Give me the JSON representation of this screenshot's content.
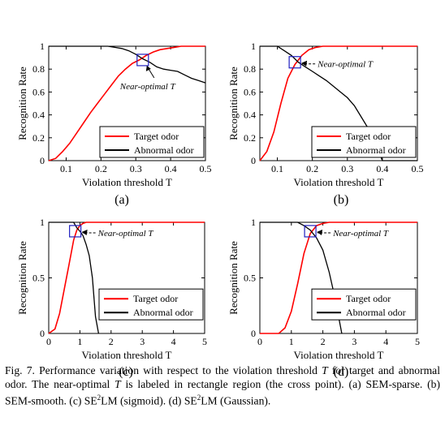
{
  "figure": {
    "caption_segments": [
      {
        "t": "Fig. 7.   Performance variation with respect to the violation threshold "
      },
      {
        "t": "T",
        "i": true
      },
      {
        "t": " for target and abnormal odor. The near-optimal "
      },
      {
        "t": "T",
        "i": true
      },
      {
        "t": " is labeled in rectangle region (the cross point). (a) SEM-sparse. (b) SEM-smooth. (c) SE"
      },
      {
        "t": "2",
        "sup": true
      },
      {
        "t": "LM (sigmoid). (d) SE"
      },
      {
        "t": "2",
        "sup": true
      },
      {
        "t": "LM (Gaussian)."
      }
    ]
  },
  "colors": {
    "target": "#ff0000",
    "abnormal": "#000000",
    "marker": "#2020c0"
  },
  "chart_data": [
    {
      "id": "a",
      "type": "line",
      "panel_label": "(a)",
      "xlabel": "Violation threshold T",
      "ylabel": "Recognition Rate",
      "xlim": [
        0.05,
        0.5
      ],
      "ylim": [
        0,
        1
      ],
      "xticks": [
        0.1,
        0.2,
        0.3,
        0.4,
        0.5
      ],
      "xtick_labels": [
        "0.1",
        "0.2",
        "0.3",
        "0.4",
        "0.5"
      ],
      "yticks": [
        0,
        0.2,
        0.4,
        0.6,
        0.8,
        1
      ],
      "ytick_labels": [
        "0",
        "0.2",
        "0.4",
        "0.6",
        "0.8",
        "1"
      ],
      "legend": {
        "position": "lower-right",
        "entries": [
          "Target odor",
          "Abnormal odor"
        ]
      },
      "annotation": {
        "text": "Near-optimal T",
        "x": 0.32,
        "y": 0.88
      },
      "series": [
        {
          "name": "Target odor",
          "x": [
            0.05,
            0.07,
            0.09,
            0.11,
            0.13,
            0.15,
            0.17,
            0.19,
            0.21,
            0.23,
            0.25,
            0.27,
            0.29,
            0.31,
            0.33,
            0.35,
            0.37,
            0.39,
            0.41,
            0.43,
            0.45,
            0.5
          ],
          "y": [
            0,
            0.02,
            0.08,
            0.15,
            0.24,
            0.33,
            0.42,
            0.5,
            0.58,
            0.66,
            0.74,
            0.8,
            0.85,
            0.88,
            0.92,
            0.95,
            0.97,
            0.98,
            0.99,
            1.0,
            1.0,
            1.0
          ]
        },
        {
          "name": "Abnormal odor",
          "x": [
            0.05,
            0.22,
            0.24,
            0.26,
            0.28,
            0.3,
            0.32,
            0.34,
            0.36,
            0.38,
            0.4,
            0.42,
            0.44,
            0.46,
            0.48,
            0.5
          ],
          "y": [
            1.0,
            1.0,
            0.99,
            0.98,
            0.96,
            0.93,
            0.89,
            0.86,
            0.82,
            0.8,
            0.79,
            0.78,
            0.75,
            0.72,
            0.7,
            0.68
          ]
        }
      ]
    },
    {
      "id": "b",
      "type": "line",
      "panel_label": "(b)",
      "xlabel": "Violation threshold T",
      "ylabel": "Recognition Rate",
      "xlim": [
        0.05,
        0.5
      ],
      "ylim": [
        0,
        1
      ],
      "xticks": [
        0.1,
        0.2,
        0.3,
        0.4,
        0.5
      ],
      "xtick_labels": [
        "0.1",
        "0.2",
        "0.3",
        "0.4",
        "0.5"
      ],
      "yticks": [
        0,
        0.2,
        0.4,
        0.6,
        0.8,
        1
      ],
      "ytick_labels": [
        "0",
        "0.2",
        "0.4",
        "0.6",
        "0.8",
        "1"
      ],
      "legend": {
        "position": "lower-right",
        "entries": [
          "Target odor",
          "Abnormal odor"
        ]
      },
      "annotation": {
        "text": "Near-optimal T",
        "x": 0.15,
        "y": 0.86
      },
      "series": [
        {
          "name": "Target odor",
          "x": [
            0.05,
            0.07,
            0.09,
            0.11,
            0.13,
            0.15,
            0.17,
            0.19,
            0.21,
            0.23,
            0.25,
            0.5
          ],
          "y": [
            0,
            0.08,
            0.25,
            0.5,
            0.72,
            0.84,
            0.92,
            0.97,
            0.99,
            1.0,
            1.0,
            1.0
          ]
        },
        {
          "name": "Abnormal odor",
          "x": [
            0.05,
            0.1,
            0.12,
            0.14,
            0.16,
            0.18,
            0.2,
            0.22,
            0.24,
            0.26,
            0.28,
            0.3,
            0.32,
            0.34,
            0.36,
            0.38,
            0.4,
            0.5
          ],
          "y": [
            1.0,
            1.0,
            0.96,
            0.92,
            0.86,
            0.82,
            0.78,
            0.74,
            0.7,
            0.65,
            0.6,
            0.55,
            0.48,
            0.38,
            0.28,
            0.15,
            0.0,
            0.0
          ]
        }
      ]
    },
    {
      "id": "c",
      "type": "line",
      "panel_label": "(c)",
      "xlabel": "Violation threshold T",
      "ylabel": "Recognition Rate",
      "xlim": [
        0,
        5
      ],
      "ylim": [
        0,
        1
      ],
      "xticks": [
        0,
        1,
        2,
        3,
        4,
        5
      ],
      "xtick_labels": [
        "0",
        "1",
        "2",
        "3",
        "4",
        "5"
      ],
      "yticks": [
        0,
        0.5,
        1
      ],
      "ytick_labels": [
        "0",
        "0.5",
        "1"
      ],
      "legend": {
        "position": "right",
        "entries": [
          "Target odor",
          "Abnormal odor"
        ]
      },
      "annotation": {
        "text": "Near-optimal T",
        "x": 0.85,
        "y": 0.92
      },
      "series": [
        {
          "name": "Target odor",
          "x": [
            0,
            0.2,
            0.35,
            0.5,
            0.65,
            0.8,
            0.9,
            1.0,
            1.1,
            1.2,
            5
          ],
          "y": [
            0,
            0.04,
            0.18,
            0.4,
            0.62,
            0.84,
            0.93,
            0.97,
            0.99,
            1.0,
            1.0
          ]
        },
        {
          "name": "Abnormal odor",
          "x": [
            0,
            0.8,
            0.9,
            1.0,
            1.1,
            1.2,
            1.3,
            1.4,
            1.5,
            1.6
          ],
          "y": [
            1.0,
            1.0,
            0.95,
            0.92,
            0.88,
            0.8,
            0.7,
            0.5,
            0.15,
            0.0
          ]
        }
      ]
    },
    {
      "id": "d",
      "type": "line",
      "panel_label": "(d)",
      "xlabel": "Violation threshold T",
      "ylabel": "Recognition Rate",
      "xlim": [
        0,
        5
      ],
      "ylim": [
        0,
        1
      ],
      "xticks": [
        0,
        1,
        2,
        3,
        4,
        5
      ],
      "xtick_labels": [
        "0",
        "1",
        "2",
        "3",
        "4",
        "5"
      ],
      "yticks": [
        0,
        0.5,
        1
      ],
      "ytick_labels": [
        "0",
        "0.5",
        "1"
      ],
      "legend": {
        "position": "right",
        "entries": [
          "Target odor",
          "Abnormal odor"
        ]
      },
      "annotation": {
        "text": "Near-optimal T",
        "x": 1.6,
        "y": 0.92
      },
      "series": [
        {
          "name": "Target odor",
          "x": [
            0,
            0.6,
            0.8,
            1.0,
            1.2,
            1.4,
            1.6,
            1.8,
            2.0,
            2.2,
            5
          ],
          "y": [
            0,
            0.0,
            0.05,
            0.2,
            0.45,
            0.72,
            0.9,
            0.97,
            0.99,
            1.0,
            1.0
          ]
        },
        {
          "name": "Abnormal odor",
          "x": [
            0,
            1.2,
            1.4,
            1.6,
            1.8,
            2.0,
            2.2,
            2.4,
            2.6
          ],
          "y": [
            1.0,
            1.0,
            0.97,
            0.93,
            0.86,
            0.75,
            0.55,
            0.3,
            0.0
          ]
        }
      ]
    }
  ]
}
